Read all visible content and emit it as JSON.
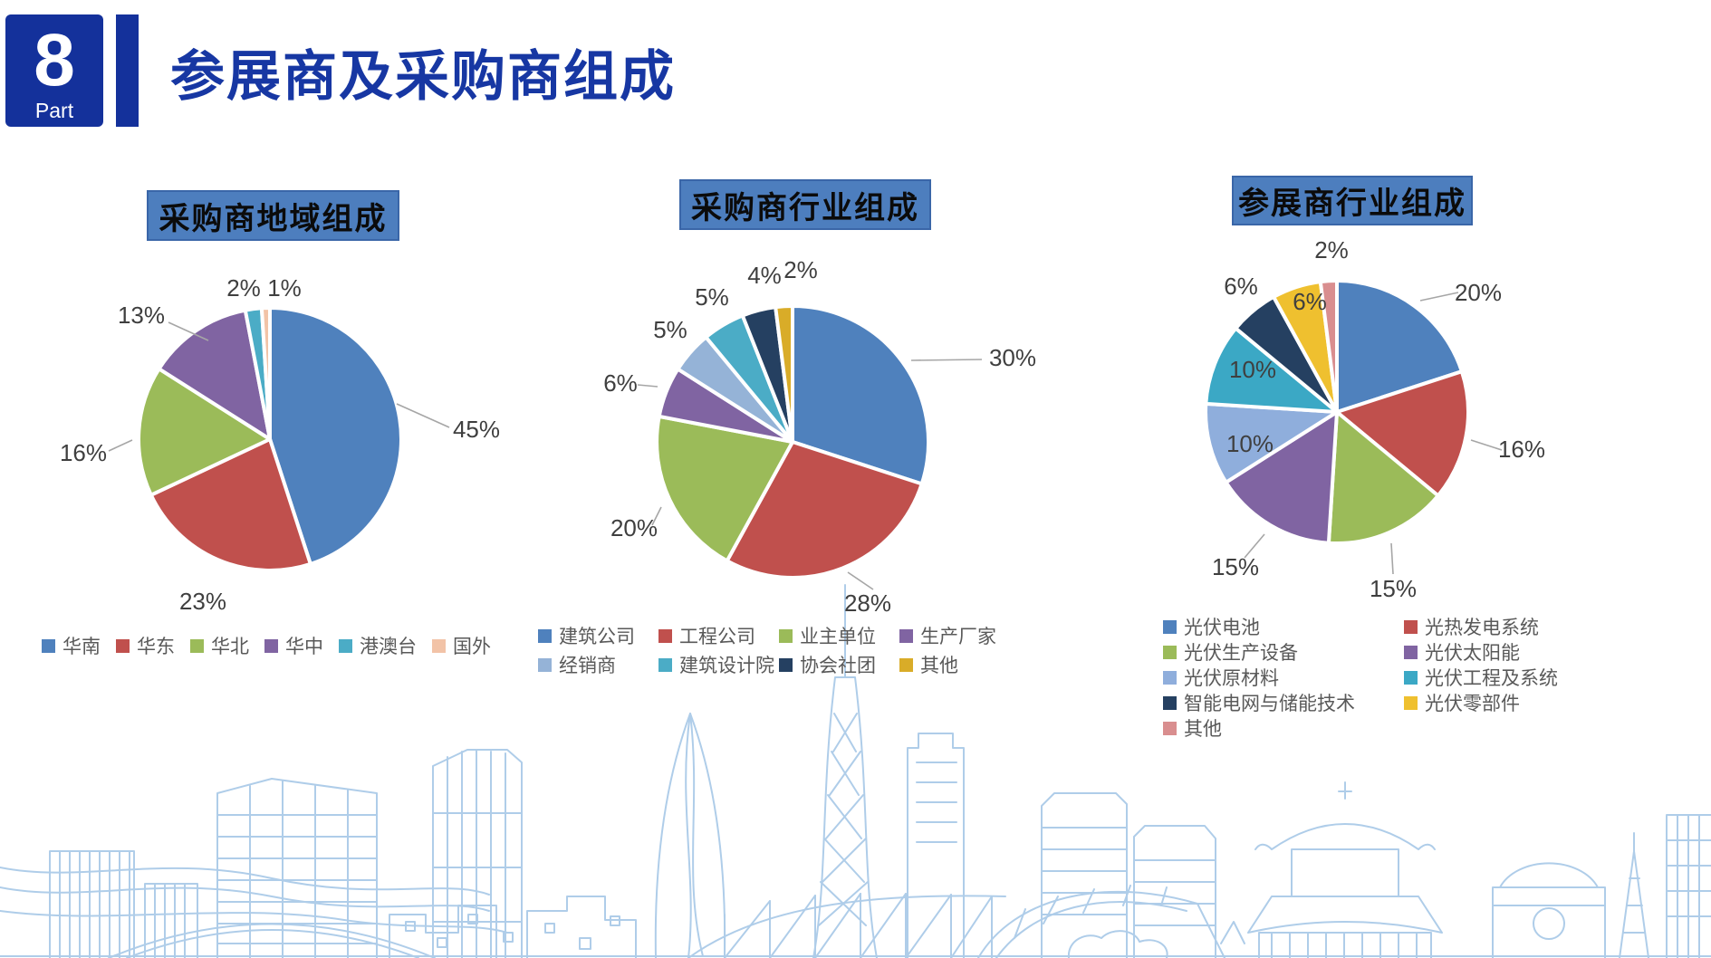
{
  "header": {
    "part_number": "8",
    "part_label": "Part",
    "title": "参展商及采购商组成"
  },
  "accent_colors": {
    "header_blue": "#14319B",
    "title_text_blue": "#1737A3",
    "chart_title_box_fill": "#4D7EBE",
    "label_text": "#3F3F3F",
    "legend_text": "#595959",
    "leader_line": "#A6A6A6",
    "skyline_stroke": "#AFCDE9"
  },
  "chart_data": [
    {
      "type": "pie",
      "title": "采购商地域组成",
      "legend_position": "bottom",
      "slices": [
        {
          "name": "华南",
          "value": 45,
          "label": "45%",
          "color": "#4F81BD"
        },
        {
          "name": "华东",
          "value": 23,
          "label": "23%",
          "color": "#C0504D"
        },
        {
          "name": "华北",
          "value": 16,
          "label": "16%",
          "color": "#9BBB59"
        },
        {
          "name": "华中",
          "value": 13,
          "label": "13%",
          "color": "#8064A2"
        },
        {
          "name": "港澳台",
          "value": 2,
          "label": "2%",
          "color": "#4BACC6"
        },
        {
          "name": "国外",
          "value": 1,
          "label": "1%",
          "color": "#F2C3A7"
        }
      ]
    },
    {
      "type": "pie",
      "title": "采购商行业组成",
      "legend_position": "bottom",
      "slices": [
        {
          "name": "建筑公司",
          "value": 30,
          "label": "30%",
          "color": "#4F81BD"
        },
        {
          "name": "工程公司",
          "value": 28,
          "label": "28%",
          "color": "#C0504D"
        },
        {
          "name": "业主单位",
          "value": 20,
          "label": "20%",
          "color": "#9BBB59"
        },
        {
          "name": "生产厂家",
          "value": 6,
          "label": "6%",
          "color": "#8064A2"
        },
        {
          "name": "经销商",
          "value": 5,
          "label": "5%",
          "color": "#95B3D7"
        },
        {
          "name": "建筑设计院",
          "value": 5,
          "label": "5%",
          "color": "#4BACC6"
        },
        {
          "name": "协会社团",
          "value": 4,
          "label": "4%",
          "color": "#254061"
        },
        {
          "name": "其他",
          "value": 2,
          "label": "2%",
          "color": "#D9AC28"
        }
      ]
    },
    {
      "type": "pie",
      "title": "参展商行业组成",
      "legend_position": "bottom",
      "slices": [
        {
          "name": "光伏电池",
          "value": 20,
          "label": "20%",
          "color": "#4F81BD"
        },
        {
          "name": "光热发电系统",
          "value": 16,
          "label": "16%",
          "color": "#C0504D"
        },
        {
          "name": "光伏生产设备",
          "value": 15,
          "label": "15%",
          "color": "#9BBB59"
        },
        {
          "name": "光伏太阳能",
          "value": 15,
          "label": "15%",
          "color": "#8064A2"
        },
        {
          "name": "光伏原材料",
          "value": 10,
          "label": "10%",
          "color": "#8FAEDC"
        },
        {
          "name": "光伏工程及系统",
          "value": 10,
          "label": "10%",
          "color": "#3BA8C5"
        },
        {
          "name": "智能电网与储能技术",
          "value": 6,
          "label": "6%",
          "color": "#254061"
        },
        {
          "name": "光伏零部件",
          "value": 6,
          "label": "6%",
          "color": "#EFC02F"
        },
        {
          "name": "其他",
          "value": 2,
          "label": "2%",
          "color": "#D98E8F"
        }
      ]
    }
  ]
}
